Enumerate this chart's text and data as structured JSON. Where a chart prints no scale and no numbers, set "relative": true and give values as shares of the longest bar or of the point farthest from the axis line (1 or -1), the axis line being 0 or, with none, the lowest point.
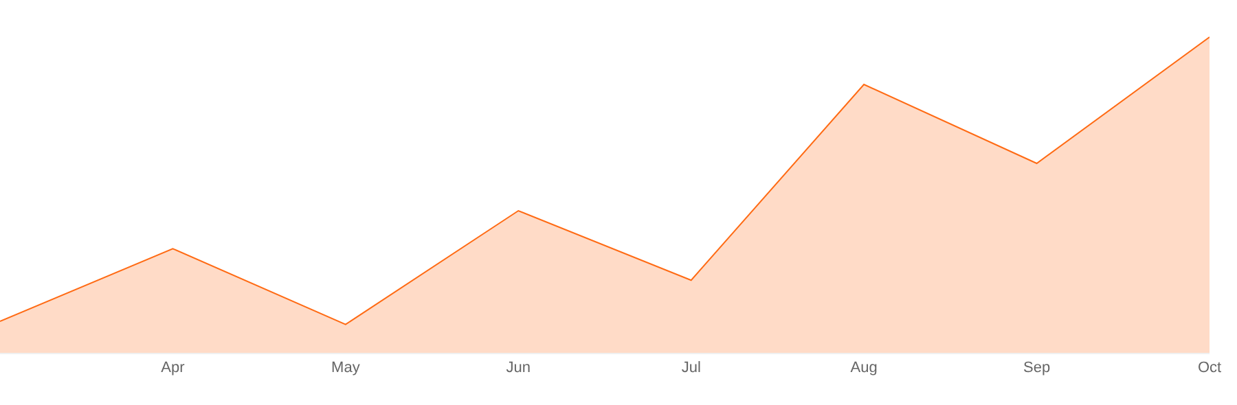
{
  "chart_data": {
    "type": "area",
    "relative": true,
    "categories": [
      null,
      "Apr",
      "May",
      "Jun",
      "Jul",
      "Aug",
      "Sep",
      "Oct"
    ],
    "series": [
      {
        "color": "#ff6a13",
        "values": [
          0.1,
          0.33,
          0.09,
          0.45,
          0.23,
          0.85,
          0.6,
          1.0
        ]
      }
    ],
    "tick_labels": "x"
  }
}
